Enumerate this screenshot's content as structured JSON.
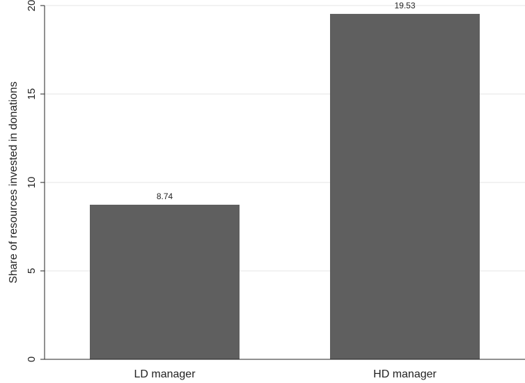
{
  "chart_data": {
    "type": "bar",
    "categories": [
      "LD manager",
      "HD manager"
    ],
    "values": [
      8.74,
      19.53
    ],
    "value_labels": [
      "8.74",
      "19.53"
    ],
    "title": "",
    "xlabel": "",
    "ylabel": "Share of resources invested in donations",
    "ylim": [
      0,
      20
    ],
    "yticks": [
      0,
      5,
      10,
      15,
      20
    ],
    "ytick_labels": [
      "0",
      "5",
      "10",
      "15",
      "20"
    ],
    "grid": true,
    "legend": "none",
    "bar_color": "#5f5f5f",
    "grid_color": "#e6e6e6"
  }
}
